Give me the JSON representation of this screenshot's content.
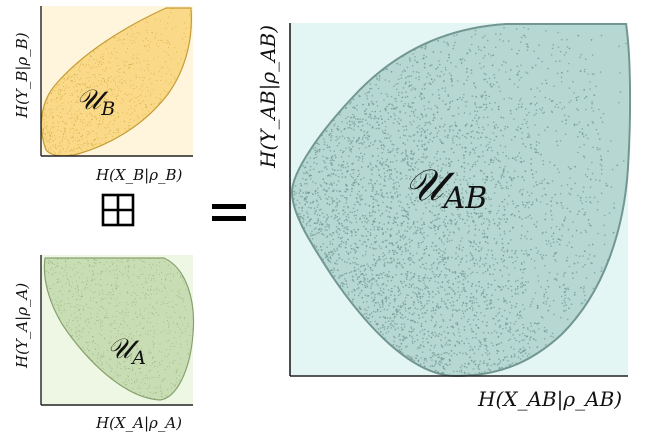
{
  "panel_b": {
    "region_label": "𝒰",
    "region_sub": "B",
    "x_label": "H(X_B|ρ_B)",
    "y_label": "H(Y_B|ρ_B)",
    "fill_color": "#f6c343",
    "bg_color": "#fff5dc"
  },
  "panel_a": {
    "region_label": "𝒰",
    "region_sub": "A",
    "x_label": "H(X_A|ρ_A)",
    "y_label": "H(Y_A|ρ_A)",
    "fill_color": "#a9c98a",
    "bg_color": "#eef7e4"
  },
  "panel_ab": {
    "region_label": "𝒰",
    "region_sub": "AB",
    "x_label": "H(X_AB|ρ_AB)",
    "y_label": "H(Y_AB|ρ_AB)",
    "fill_color": "#8fbdb7",
    "bg_color": "#e4f6f4"
  },
  "operators": {
    "boxplus": "⊞",
    "equals": "="
  }
}
